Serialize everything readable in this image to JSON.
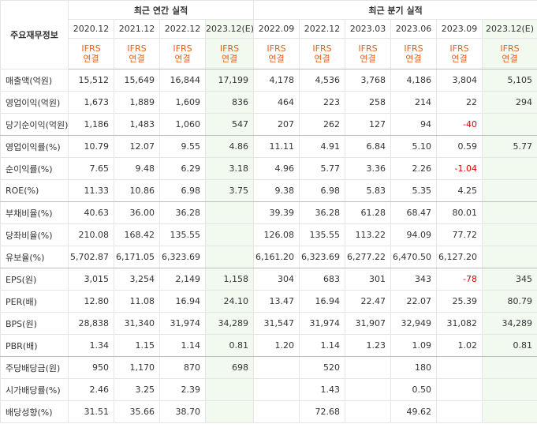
{
  "header": {
    "row_label": "주요재무정보",
    "annual_title": "최근 연간 실적",
    "quarterly_title": "최근 분기 실적",
    "periods": [
      "2020.12",
      "2021.12",
      "2022.12",
      "2023.12(E)",
      "2022.09",
      "2022.12",
      "2023.03",
      "2023.06",
      "2023.09",
      "2023.12(E)"
    ],
    "standard": "IFRS",
    "basis": "연결"
  },
  "colors": {
    "negative": "#e00000",
    "estimate_bg": "#f2f9ee",
    "standard_text": "#e8601a"
  },
  "rows": [
    {
      "label": "매출액(억원)",
      "values": [
        "15,512",
        "15,649",
        "16,844",
        "17,199",
        "4,178",
        "4,536",
        "3,768",
        "4,186",
        "3,804",
        "5,105"
      ]
    },
    {
      "label": "영업이익(억원)",
      "values": [
        "1,673",
        "1,889",
        "1,609",
        "836",
        "464",
        "223",
        "258",
        "214",
        "22",
        "294"
      ]
    },
    {
      "label": "당기순이익(억원)",
      "values": [
        "1,186",
        "1,483",
        "1,060",
        "547",
        "207",
        "262",
        "127",
        "94",
        "-40",
        ""
      ]
    },
    {
      "label": "영업이익률(%)",
      "values": [
        "10.79",
        "12.07",
        "9.55",
        "4.86",
        "11.11",
        "4.91",
        "6.84",
        "5.10",
        "0.59",
        "5.77"
      ]
    },
    {
      "label": "순이익률(%)",
      "values": [
        "7.65",
        "9.48",
        "6.29",
        "3.18",
        "4.96",
        "5.77",
        "3.36",
        "2.26",
        "-1.04",
        ""
      ]
    },
    {
      "label": "ROE(%)",
      "values": [
        "11.33",
        "10.86",
        "6.98",
        "3.75",
        "9.38",
        "6.98",
        "5.83",
        "5.35",
        "4.25",
        ""
      ]
    },
    {
      "label": "부채비율(%)",
      "values": [
        "40.63",
        "36.00",
        "36.28",
        "",
        "39.39",
        "36.28",
        "61.28",
        "68.47",
        "80.01",
        ""
      ]
    },
    {
      "label": "당좌비율(%)",
      "values": [
        "210.08",
        "168.42",
        "135.55",
        "",
        "126.08",
        "135.55",
        "113.22",
        "94.09",
        "77.72",
        ""
      ]
    },
    {
      "label": "유보율(%)",
      "values": [
        "5,702.87",
        "6,171.05",
        "6,323.69",
        "",
        "6,161.20",
        "6,323.69",
        "6,277.22",
        "6,470.50",
        "6,127.20",
        ""
      ]
    },
    {
      "label": "EPS(원)",
      "values": [
        "3,015",
        "3,254",
        "2,149",
        "1,158",
        "304",
        "683",
        "301",
        "343",
        "-78",
        "345"
      ]
    },
    {
      "label": "PER(배)",
      "values": [
        "12.80",
        "11.08",
        "16.94",
        "24.10",
        "13.47",
        "16.94",
        "22.47",
        "22.07",
        "25.39",
        "80.79"
      ]
    },
    {
      "label": "BPS(원)",
      "values": [
        "28,838",
        "31,340",
        "31,974",
        "34,289",
        "31,547",
        "31,974",
        "31,907",
        "32,949",
        "31,082",
        "34,289"
      ]
    },
    {
      "label": "PBR(배)",
      "values": [
        "1.34",
        "1.15",
        "1.14",
        "0.81",
        "1.20",
        "1.14",
        "1.23",
        "1.09",
        "1.02",
        "0.81"
      ]
    },
    {
      "label": "주당배당금(원)",
      "values": [
        "950",
        "1,170",
        "870",
        "698",
        "",
        "520",
        "",
        "180",
        "",
        ""
      ]
    },
    {
      "label": "시가배당률(%)",
      "values": [
        "2.46",
        "3.25",
        "2.39",
        "",
        "",
        "1.43",
        "",
        "0.50",
        "",
        ""
      ]
    },
    {
      "label": "배당성향(%)",
      "values": [
        "31.51",
        "35.66",
        "38.70",
        "",
        "",
        "72.68",
        "",
        "49.62",
        "",
        ""
      ]
    }
  ]
}
